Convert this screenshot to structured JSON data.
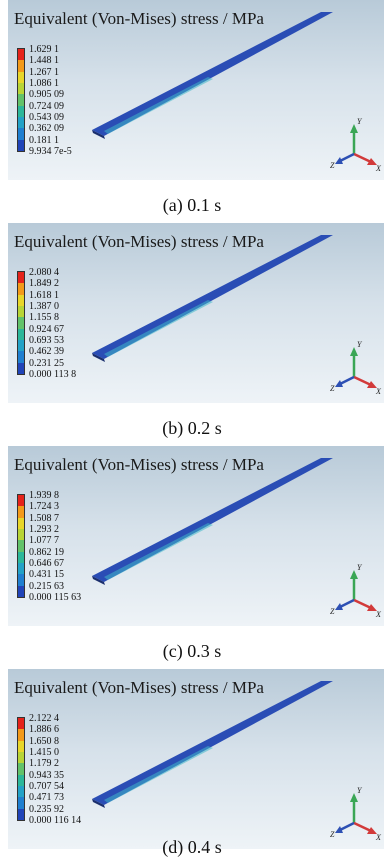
{
  "colors": {
    "scale": [
      "#e5231b",
      "#f39a1a",
      "#e8d62a",
      "#b8d436",
      "#62c26a",
      "#2cb79a",
      "#23a2c7",
      "#1f7fd0",
      "#2044b8"
    ],
    "model_base": "#2a4db5",
    "model_hot": "#3fb8c8"
  },
  "panels": [
    {
      "title": "Equivalent (Von-Mises) stress / MPa",
      "labels": [
        "1.629 1",
        "1.448 1",
        "1.267 1",
        "1.086 1",
        "0.905 09",
        "0.724 09",
        "0.543 09",
        "0.362 09",
        "0.181 1",
        "9.934 7e-5"
      ],
      "caption": "(a) 0.1 s",
      "axes": {
        "y": "Y",
        "z": "Z",
        "x": "X"
      }
    },
    {
      "title": "Equivalent (Von-Mises) stress / MPa",
      "labels": [
        "2.080 4",
        "1.849 2",
        "1.618 1",
        "1.387 0",
        "1.155 8",
        "0.924 67",
        "0.693 53",
        "0.462 39",
        "0.231 25",
        "0.000 113 8"
      ],
      "caption": "(b) 0.2 s",
      "axes": {
        "y": "Y",
        "z": "Z",
        "x": "X"
      }
    },
    {
      "title": "Equivalent (Von-Mises) stress / MPa",
      "labels": [
        "1.939 8",
        "1.724 3",
        "1.508 7",
        "1.293 2",
        "1.077 7",
        "0.862 19",
        "0.646 67",
        "0.431 15",
        "0.215 63",
        "0.000 115 63"
      ],
      "caption": "(c) 0.3 s",
      "axes": {
        "y": "Y",
        "z": "Z",
        "x": "X"
      }
    },
    {
      "title": "Equivalent (Von-Mises) stress / MPa",
      "labels": [
        "2.122 4",
        "1.886 6",
        "1.650 8",
        "1.415 0",
        "1.179 2",
        "0.943 35",
        "0.707 54",
        "0.471 73",
        "0.235 92",
        "0.000 116 14"
      ],
      "caption": "(d) 0.4 s",
      "axes": {
        "y": "Y",
        "z": "Z",
        "x": "X"
      }
    }
  ]
}
